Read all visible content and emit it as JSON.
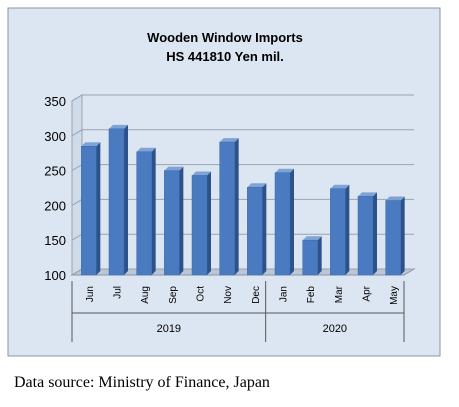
{
  "chart_data": {
    "type": "bar",
    "title": "Wooden Window Imports",
    "subtitle": "HS 441810 Yen mil.",
    "categories": [
      "Jun",
      "Jul",
      "Aug",
      "Sep",
      "Oct",
      "Nov",
      "Dec",
      "Jan",
      "Feb",
      "Mar",
      "Apr",
      "May"
    ],
    "values": [
      285,
      310,
      277,
      250,
      243,
      291,
      226,
      247,
      150,
      224,
      213,
      207
    ],
    "groups": [
      {
        "label": "2019",
        "categories": [
          "Jun",
          "Jul",
          "Aug",
          "Sep",
          "Oct",
          "Nov",
          "Dec"
        ]
      },
      {
        "label": "2020",
        "categories": [
          "Jan",
          "Feb",
          "Mar",
          "Apr",
          "May"
        ]
      }
    ],
    "ylim": [
      100,
      350
    ],
    "yticks": [
      100,
      150,
      200,
      250,
      300,
      350
    ],
    "grid": true,
    "legend": "none",
    "colors": {
      "bar": "#4a7bc1",
      "bar_dark": "#2d5189",
      "plot_bg": "#dce6f2",
      "floor": "#b9c7d9",
      "grid": "#9aa3ad"
    }
  },
  "source_note": "Data source: Ministry of Finance, Japan"
}
